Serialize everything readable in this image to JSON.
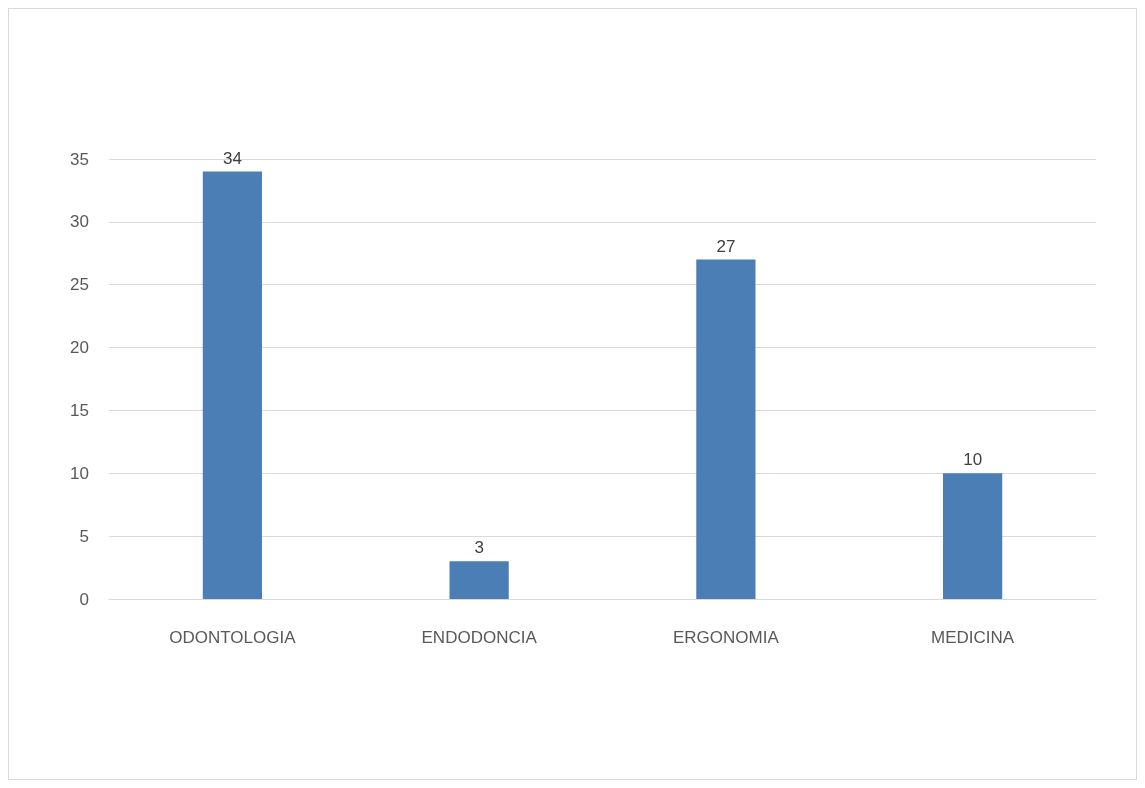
{
  "chart_data": {
    "type": "bar",
    "categories": [
      "ODONTOLOGIA",
      "ENDODONCIA",
      "ERGONOMIA",
      "MEDICINA"
    ],
    "values": [
      34,
      3,
      27,
      10
    ],
    "color": "#4a7eb4",
    "ylim": [
      0,
      35
    ],
    "yticks": [
      0,
      5,
      10,
      15,
      20,
      25,
      30,
      35
    ],
    "grid": "y",
    "data_labels": true
  }
}
